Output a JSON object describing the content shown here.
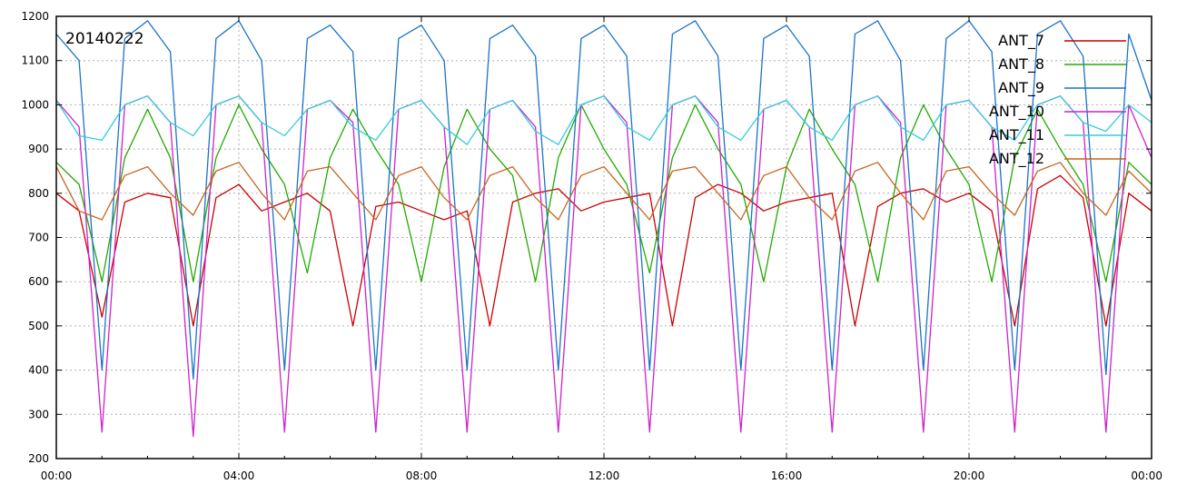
{
  "chart_data": {
    "type": "line",
    "title": "20140222",
    "xlabel": "",
    "ylabel": "",
    "xlim": [
      "00:00",
      "24:00"
    ],
    "ylim": [
      200,
      1200
    ],
    "grid": true,
    "legend_position": "top-right",
    "x_tick_labels": [
      "00:00",
      "04:00",
      "08:00",
      "12:00",
      "16:00",
      "20:00",
      "00:00"
    ],
    "y_tick_labels": [
      "200",
      "300",
      "400",
      "500",
      "600",
      "700",
      "800",
      "900",
      "1000",
      "1100",
      "1200"
    ],
    "x_sample_hours": [
      0,
      0.5,
      1.0,
      1.5,
      2.0,
      2.5,
      3.0,
      3.5,
      4.0,
      4.5,
      5.0,
      5.5,
      6.0,
      6.5,
      7.0,
      7.5,
      8.0,
      8.5,
      9.0,
      9.5,
      10.0,
      10.5,
      11.0,
      11.5,
      12.0,
      12.5,
      13.0,
      13.5,
      14.0,
      14.5,
      15.0,
      15.5,
      16.0,
      16.5,
      17.0,
      17.5,
      18.0,
      18.5,
      19.0,
      19.5,
      20.0,
      20.5,
      21.0,
      21.5,
      22.0,
      22.5,
      23.0,
      23.5,
      24.0
    ],
    "series": [
      {
        "name": "ANT_7",
        "color": "#cc0000",
        "values": [
          800,
          760,
          520,
          780,
          800,
          790,
          500,
          790,
          820,
          760,
          780,
          800,
          760,
          500,
          770,
          780,
          760,
          740,
          760,
          500,
          780,
          800,
          810,
          760,
          780,
          790,
          800,
          500,
          790,
          820,
          800,
          760,
          780,
          790,
          800,
          500,
          770,
          800,
          810,
          780,
          800,
          760,
          500,
          810,
          840,
          790,
          500,
          800,
          760
        ]
      },
      {
        "name": "ANT_8",
        "color": "#22aa00",
        "values": [
          870,
          820,
          600,
          880,
          990,
          880,
          600,
          880,
          1000,
          900,
          820,
          620,
          880,
          990,
          900,
          820,
          600,
          860,
          990,
          900,
          840,
          600,
          880,
          1000,
          900,
          820,
          620,
          880,
          1000,
          900,
          820,
          600,
          860,
          990,
          900,
          820,
          600,
          880,
          1000,
          900,
          820,
          600,
          880,
          990,
          900,
          820,
          600,
          870,
          820
        ]
      },
      {
        "name": "ANT_9",
        "color": "#1a73c8",
        "values": [
          1160,
          1100,
          400,
          1150,
          1190,
          1120,
          380,
          1150,
          1190,
          1100,
          400,
          1150,
          1180,
          1120,
          400,
          1150,
          1180,
          1100,
          400,
          1150,
          1180,
          1110,
          400,
          1150,
          1180,
          1110,
          400,
          1160,
          1190,
          1110,
          400,
          1150,
          1180,
          1110,
          400,
          1160,
          1190,
          1100,
          400,
          1150,
          1190,
          1120,
          400,
          1160,
          1190,
          1110,
          390,
          1160,
          1010
        ]
      },
      {
        "name": "ANT_10",
        "color": "#cc22cc",
        "values": [
          1010,
          950,
          260,
          1000,
          1020,
          960,
          250,
          1000,
          1020,
          960,
          260,
          990,
          1010,
          960,
          260,
          990,
          1010,
          950,
          260,
          990,
          1010,
          950,
          260,
          1000,
          1020,
          960,
          260,
          1000,
          1020,
          960,
          260,
          990,
          1010,
          950,
          260,
          1000,
          1020,
          960,
          260,
          1000,
          1010,
          950,
          260,
          1000,
          1020,
          960,
          260,
          1000,
          880
        ]
      },
      {
        "name": "ANT_11",
        "color": "#33ccdd",
        "values": [
          1010,
          930,
          920,
          1000,
          1020,
          960,
          930,
          1000,
          1020,
          960,
          930,
          990,
          1010,
          950,
          920,
          990,
          1010,
          950,
          910,
          990,
          1010,
          940,
          910,
          1000,
          1020,
          950,
          920,
          1000,
          1020,
          950,
          920,
          990,
          1010,
          950,
          920,
          1000,
          1020,
          950,
          920,
          1000,
          1010,
          950,
          920,
          1000,
          1020,
          960,
          940,
          1000,
          960
        ]
      },
      {
        "name": "ANT_12",
        "color": "#c8641e",
        "values": [
          860,
          760,
          740,
          840,
          860,
          800,
          750,
          850,
          870,
          800,
          740,
          850,
          860,
          800,
          740,
          840,
          860,
          790,
          740,
          840,
          860,
          790,
          740,
          840,
          860,
          800,
          740,
          850,
          860,
          800,
          740,
          840,
          860,
          790,
          740,
          850,
          870,
          800,
          740,
          850,
          860,
          800,
          750,
          850,
          870,
          800,
          750,
          850,
          800
        ]
      }
    ]
  }
}
